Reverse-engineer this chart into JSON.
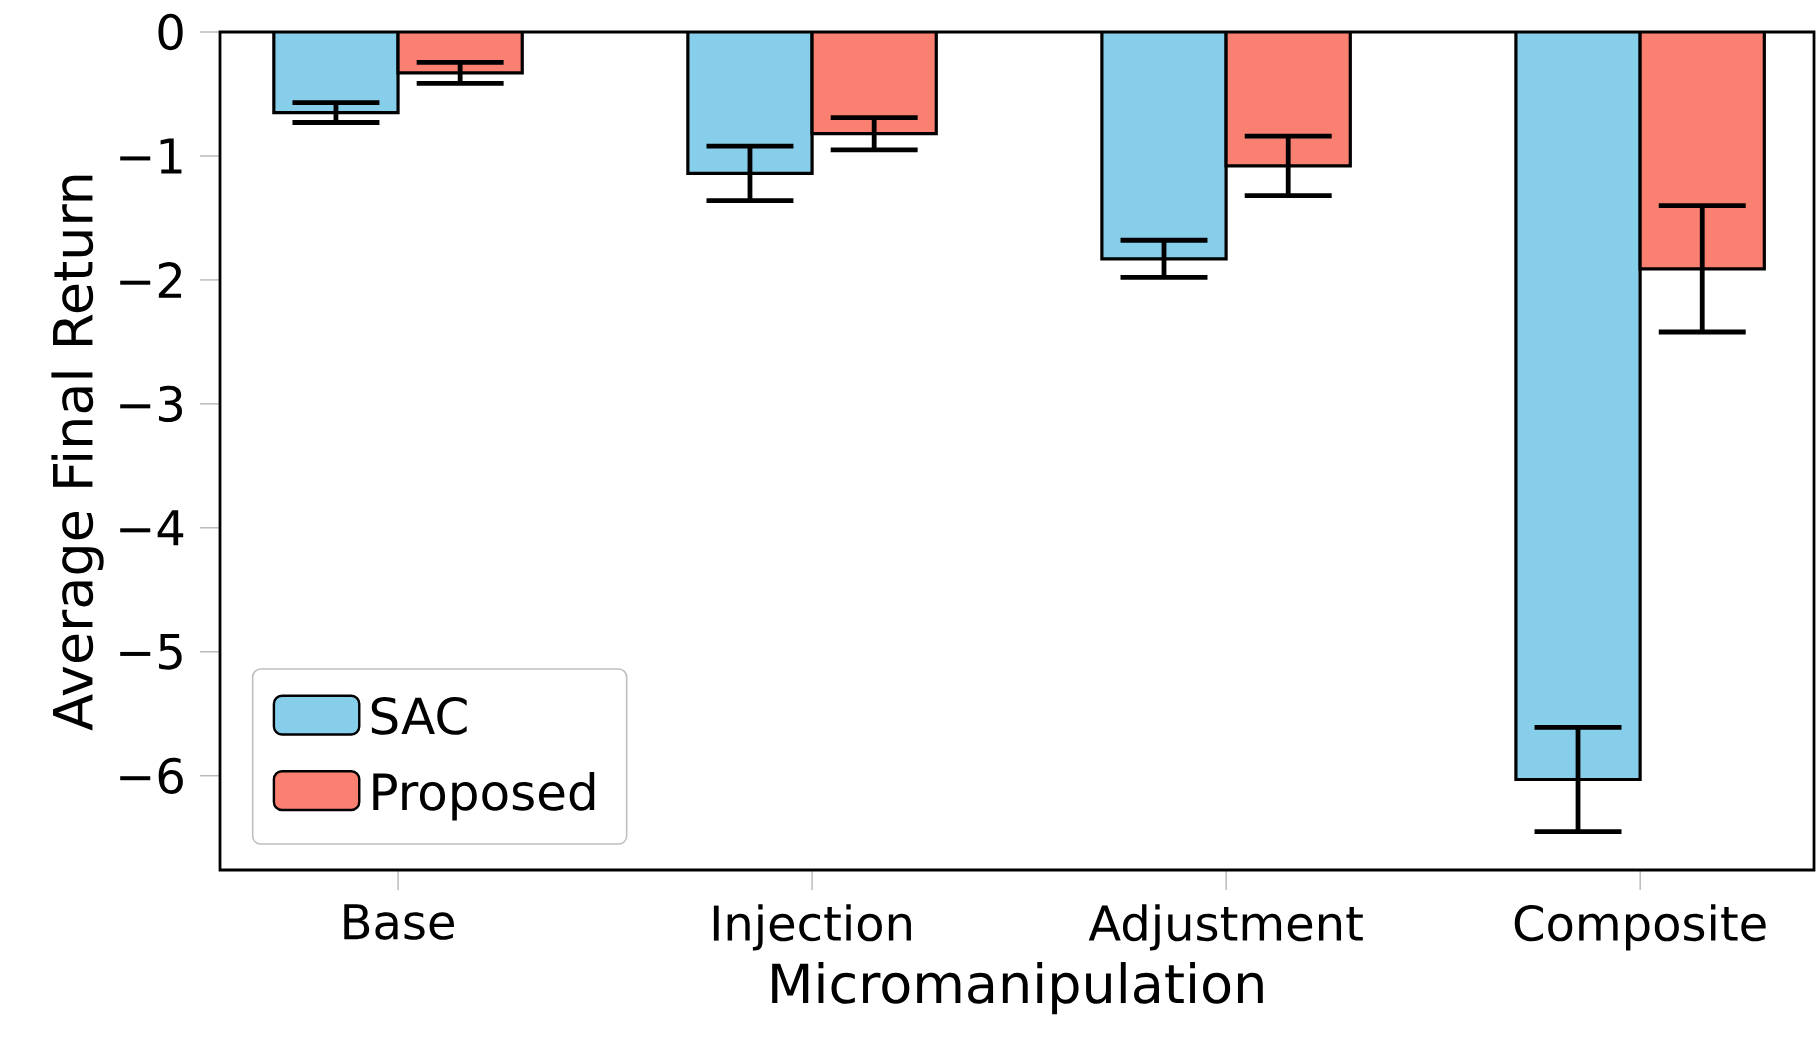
{
  "chart_data": {
    "type": "bar",
    "xlabel": "Micromanipulation",
    "ylabel": "Average Final Return",
    "categories": [
      "Base",
      "Injection",
      "Adjustment",
      "Composite"
    ],
    "series": [
      {
        "name": "SAC",
        "color": "#87ceeb",
        "values": [
          -0.65,
          -1.14,
          -1.83,
          -6.03
        ],
        "errors": [
          0.08,
          0.22,
          0.15,
          0.42
        ]
      },
      {
        "name": "Proposed",
        "color": "#fa8072",
        "values": [
          -0.33,
          -0.82,
          -1.08,
          -1.91
        ],
        "errors": [
          0.085,
          0.13,
          0.24,
          0.51
        ]
      }
    ],
    "ylim": [
      -6.76,
      0
    ],
    "yticks": [
      {
        "value": 0,
        "label": "0"
      },
      {
        "value": -1,
        "label": "−1"
      },
      {
        "value": -2,
        "label": "−2"
      },
      {
        "value": -3,
        "label": "−3"
      },
      {
        "value": -4,
        "label": "−4"
      },
      {
        "value": -5,
        "label": "−5"
      },
      {
        "value": -6,
        "label": "−6"
      }
    ],
    "legend": "bottom left"
  }
}
